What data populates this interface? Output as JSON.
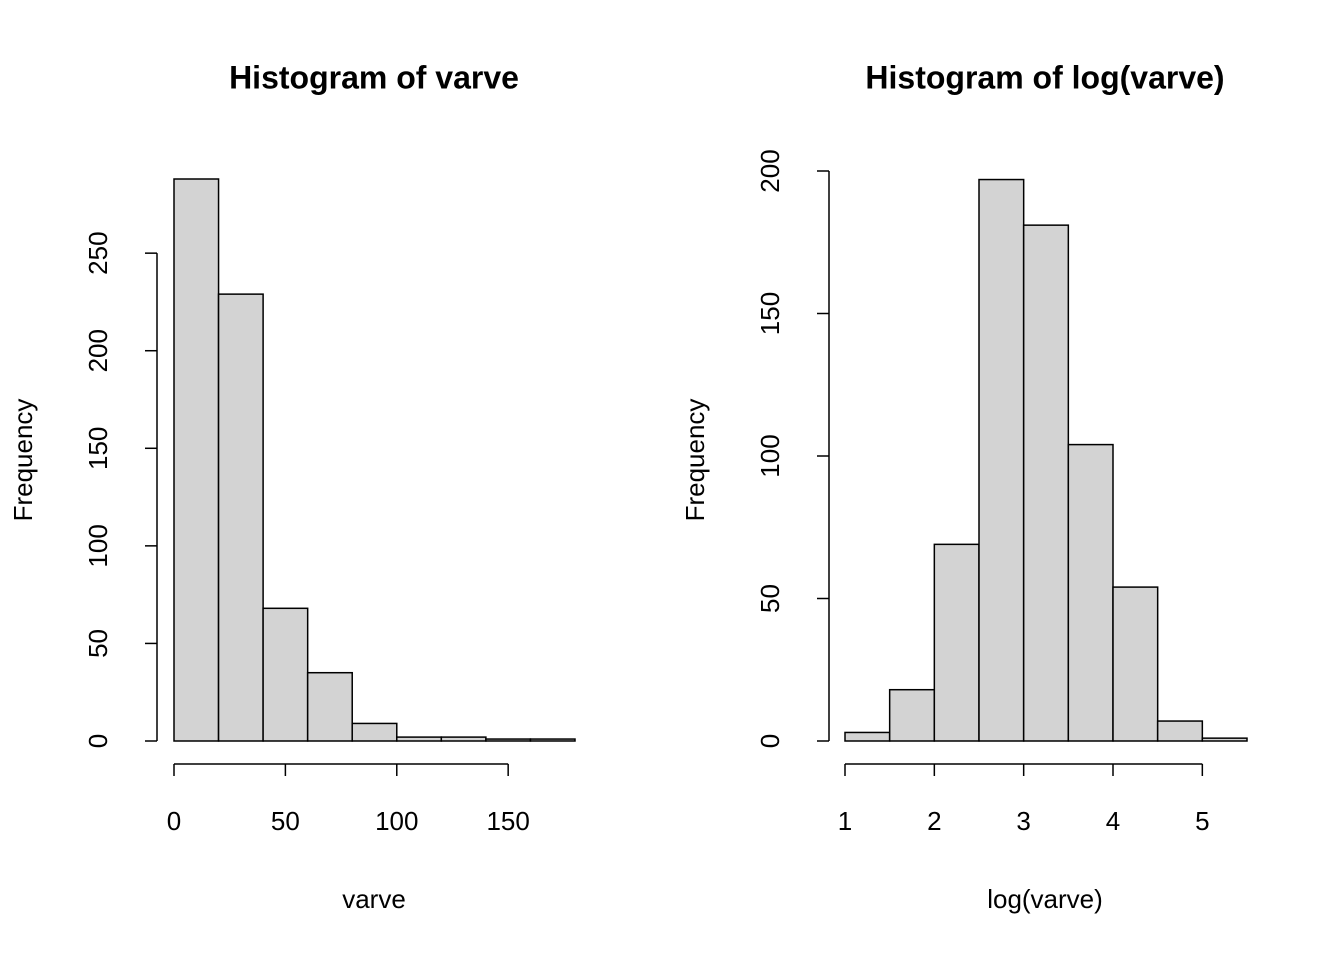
{
  "chart_data": [
    {
      "type": "histogram",
      "title": "Histogram of varve",
      "xlabel": "varve",
      "ylabel": "Frequency",
      "bins": [
        0,
        20,
        40,
        60,
        80,
        100,
        120,
        140,
        160,
        180
      ],
      "values": [
        288,
        229,
        68,
        35,
        9,
        2,
        2,
        1,
        1
      ],
      "color": "#d3d3d3",
      "xlim": [
        0,
        180
      ],
      "ylim": [
        0,
        288
      ],
      "xticks": [
        0,
        50,
        100,
        150
      ],
      "yticks": [
        0,
        50,
        100,
        150,
        200,
        250
      ]
    },
    {
      "type": "histogram",
      "title": "Histogram of log(varve)",
      "xlabel": "log(varve)",
      "ylabel": "Frequency",
      "bins": [
        1,
        1.5,
        2,
        2.5,
        3,
        3.5,
        4,
        4.5,
        5,
        5.5
      ],
      "values": [
        3,
        18,
        69,
        197,
        181,
        104,
        54,
        7,
        1
      ],
      "color": "#d3d3d3",
      "xlim": [
        1,
        5.5
      ],
      "ylim": [
        0,
        200
      ],
      "xticks": [
        1,
        2,
        3,
        4,
        5
      ],
      "yticks": [
        0,
        50,
        100,
        150,
        200
      ]
    }
  ]
}
